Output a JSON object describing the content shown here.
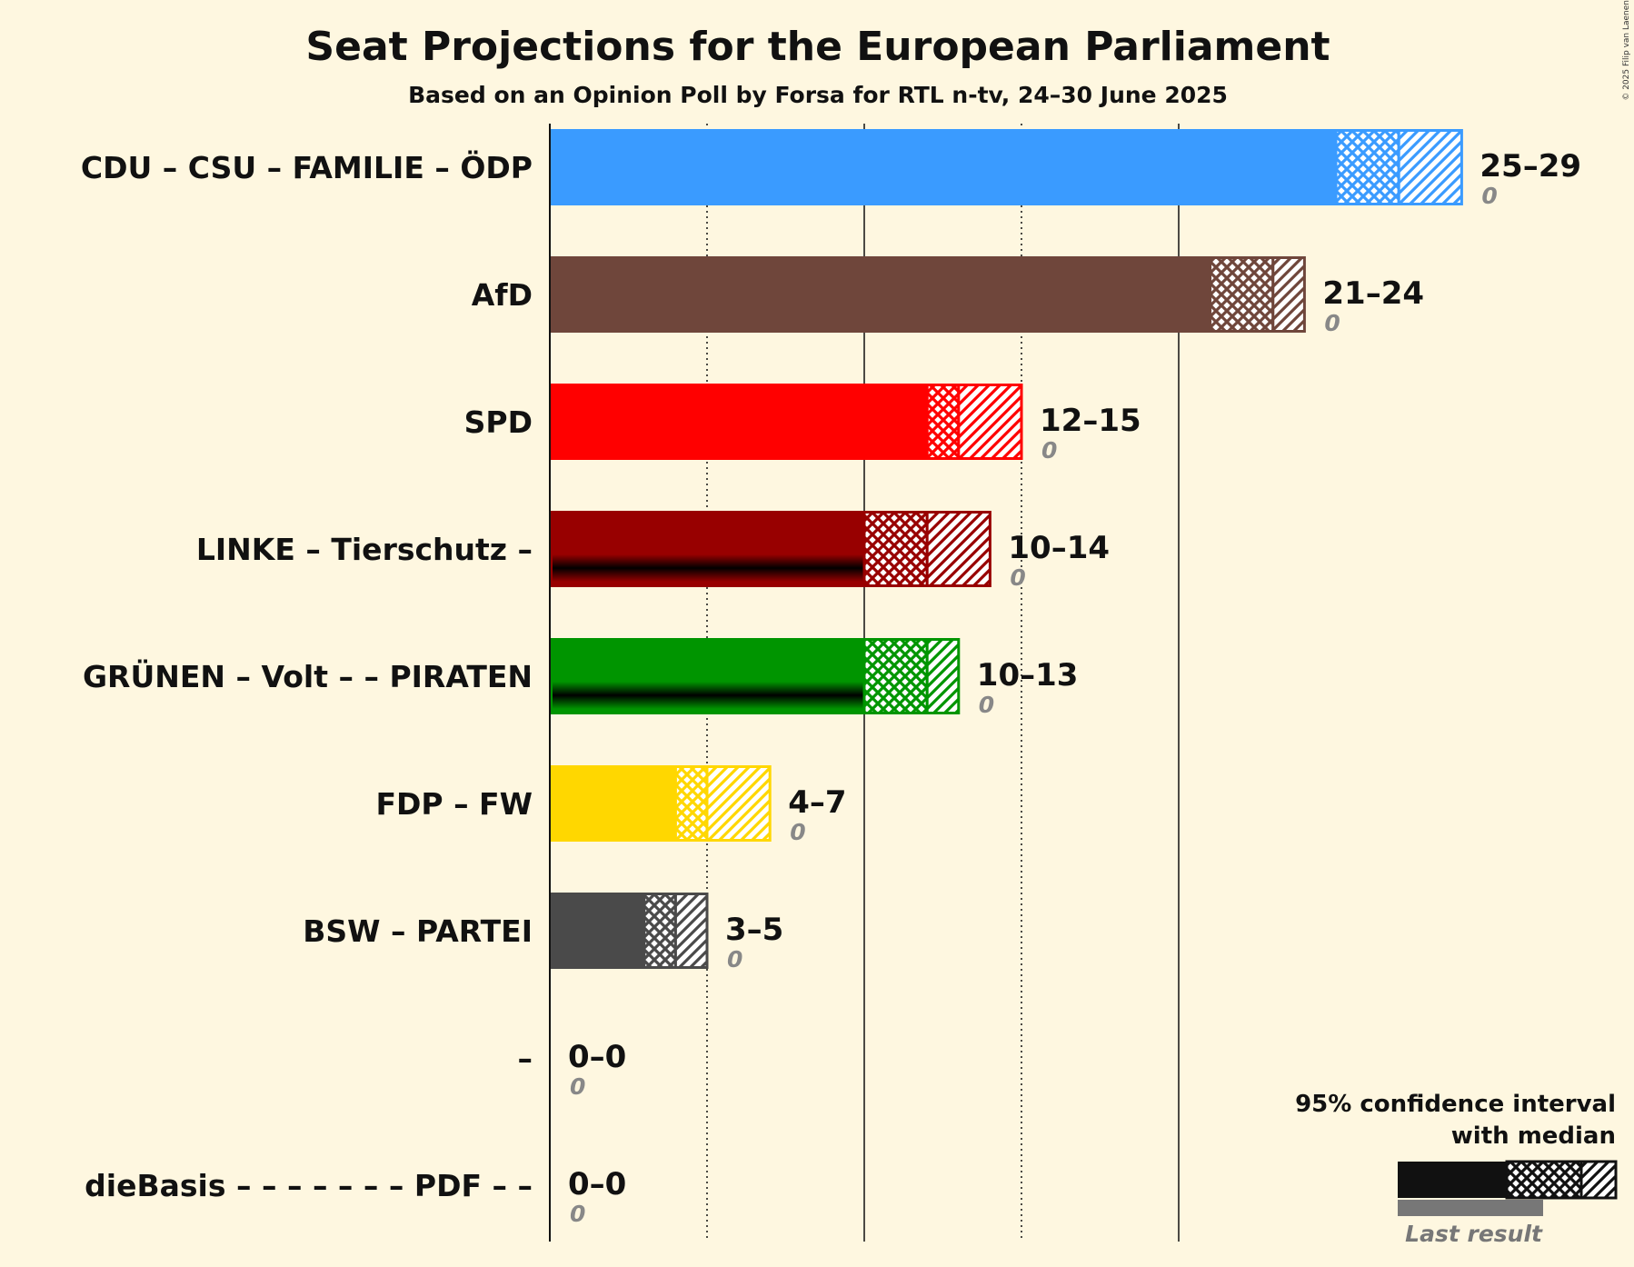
{
  "title": "Seat Projections for the European Parliament",
  "subtitle": "Based on an Opinion Poll by Forsa for RTL n-tv, 24–30 June 2025",
  "copyright": "© 2025 Filip van Laenen",
  "legend": {
    "line1": "95% confidence interval",
    "line2": "with median",
    "last_result": "Last result"
  },
  "chart_data": {
    "type": "bar",
    "orientation": "horizontal",
    "xlim": [
      0,
      29
    ],
    "gridlines": [
      5,
      10,
      15,
      20
    ],
    "parties": [
      {
        "label": "CDU – CSU – FAMILIE – ÖDP",
        "low": 25,
        "median": 27,
        "high": 29,
        "range": "25–29",
        "last": "0",
        "color": "#3A9BFF",
        "stripe": null
      },
      {
        "label": "AfD",
        "low": 21,
        "median": 23,
        "high": 24,
        "range": "21–24",
        "last": "0",
        "color": "#6F463B",
        "stripe": null
      },
      {
        "label": "SPD",
        "low": 12,
        "median": 13,
        "high": 15,
        "range": "12–15",
        "last": "0",
        "color": "#FF0000",
        "stripe": null
      },
      {
        "label": "LINKE – Tierschutz –",
        "low": 10,
        "median": 12,
        "high": 14,
        "range": "10–14",
        "last": "0",
        "color": "#980000",
        "stripe": "#000000"
      },
      {
        "label": "GRÜNEN – Volt – – PIRATEN",
        "low": 10,
        "median": 12,
        "high": 13,
        "range": "10–13",
        "last": "0",
        "color": "#009500",
        "stripe": "#000000"
      },
      {
        "label": "FDP – FW",
        "low": 4,
        "median": 5,
        "high": 7,
        "range": "4–7",
        "last": "0",
        "color": "#FFD700",
        "stripe": null
      },
      {
        "label": "BSW – PARTEI",
        "low": 3,
        "median": 4,
        "high": 5,
        "range": "3–5",
        "last": "0",
        "color": "#4A4A4A",
        "stripe": null
      },
      {
        "label": "–",
        "low": 0,
        "median": 0,
        "high": 0,
        "range": "0–0",
        "last": "0",
        "color": "#888888",
        "stripe": null
      },
      {
        "label": "dieBasis – – – – – – – PDF – –",
        "low": 0,
        "median": 0,
        "high": 0,
        "range": "0–0",
        "last": "0",
        "color": "#888888",
        "stripe": null
      }
    ]
  }
}
